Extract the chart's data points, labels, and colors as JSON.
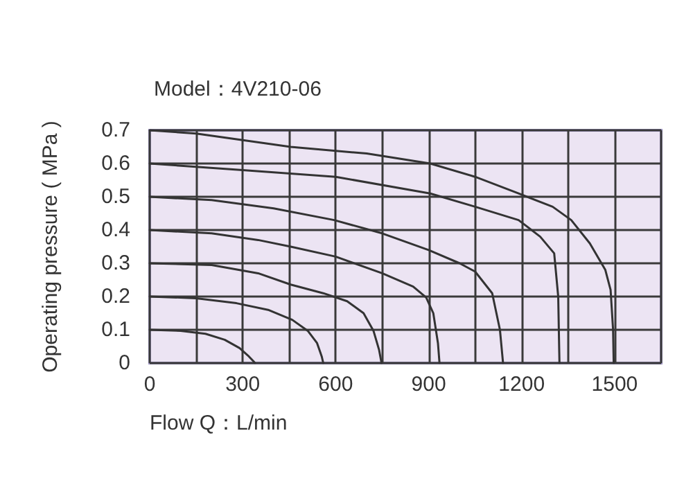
{
  "chart_data": {
    "type": "line",
    "title": "Model：4V210-06",
    "xlabel": "Flow Q：L/min",
    "ylabel": "Operating pressure ( MPa )",
    "xlim": [
      0,
      1650
    ],
    "ylim": [
      0,
      0.7
    ],
    "xticks": [
      0,
      {
        "value": 150,
        "label": null
      },
      300,
      {
        "value": 450,
        "label": null
      },
      600,
      {
        "value": 750,
        "label": null
      },
      900,
      {
        "value": 1050,
        "label": null
      },
      1200,
      {
        "value": 1350,
        "label": null
      },
      1500,
      {
        "value": 1650,
        "label": null
      }
    ],
    "yticks": [
      0,
      0.1,
      0.2,
      0.3,
      0.4,
      0.5,
      0.6,
      0.7
    ],
    "grid": true,
    "marker": "none",
    "line_style": "solid",
    "series": [
      {
        "color": "#333333",
        "x": [
          0,
          100,
          180,
          242,
          290,
          320,
          335,
          340
        ],
        "values": [
          0.1,
          0.097,
          0.088,
          0.07,
          0.045,
          0.02,
          0.005,
          0
        ]
      },
      {
        "color": "#333333",
        "x": [
          0,
          150,
          280,
          382,
          460,
          510,
          540,
          555,
          560
        ],
        "values": [
          0.2,
          0.195,
          0.18,
          0.16,
          0.13,
          0.097,
          0.06,
          0.02,
          0
        ]
      },
      {
        "color": "#333333",
        "x": [
          0,
          200,
          350,
          455,
          560,
          637,
          690,
          722,
          740,
          748
        ],
        "values": [
          0.3,
          0.295,
          0.27,
          0.236,
          0.21,
          0.186,
          0.15,
          0.097,
          0.04,
          0
        ]
      },
      {
        "color": "#333333",
        "x": [
          0,
          200,
          350,
          455,
          600,
          750,
          850,
          892,
          915,
          930,
          935
        ],
        "values": [
          0.4,
          0.39,
          0.37,
          0.35,
          0.32,
          0.27,
          0.23,
          0.197,
          0.15,
          0.06,
          0
        ]
      },
      {
        "color": "#333333",
        "x": [
          0,
          200,
          400,
          595,
          750,
          900,
          1000,
          1050,
          1105,
          1130,
          1140
        ],
        "values": [
          0.5,
          0.49,
          0.465,
          0.43,
          0.39,
          0.34,
          0.3,
          0.275,
          0.21,
          0.1,
          0
        ]
      },
      {
        "color": "#333333",
        "x": [
          0,
          300,
          600,
          905,
          1050,
          1190,
          1260,
          1305,
          1318,
          1322
        ],
        "values": [
          0.6,
          0.58,
          0.56,
          0.51,
          0.47,
          0.43,
          0.38,
          0.33,
          0.2,
          0
        ]
      },
      {
        "color": "#333333",
        "x": [
          0,
          150,
          455,
          700,
          905,
          1050,
          1190,
          1300,
          1360,
          1420,
          1470,
          1487,
          1495,
          1497
        ],
        "values": [
          0.7,
          0.69,
          0.65,
          0.63,
          0.6,
          0.56,
          0.51,
          0.47,
          0.43,
          0.36,
          0.28,
          0.22,
          0.1,
          0
        ]
      }
    ]
  }
}
